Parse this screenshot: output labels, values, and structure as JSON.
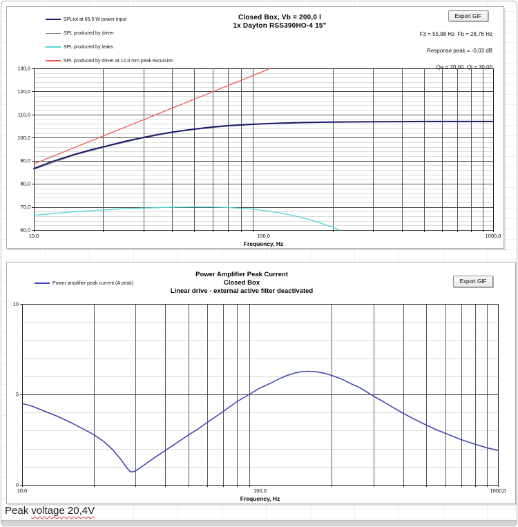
{
  "footer": {
    "text_before": "Peak ",
    "flagged": "voltage 20,4V"
  },
  "chart_data": [
    {
      "type": "line",
      "title": "Closed Box, Vb = 200,0 l — 1x Dayton RSS390HO-4 15\"",
      "title_lines": [
        "Closed Box, Vb = 200,0 l",
        "1x Dayton RSS390HO-4 15\""
      ],
      "export_button": "Export GIF",
      "stats": [
        "F3 = 55,98 Hz  Fb = 28,76 Hz",
        "Response peak = -0,03 dB",
        "Qa = 20,00  Ql = 30,00"
      ],
      "xlabel": "Frequency, Hz",
      "ylabel": "",
      "x_log": true,
      "xlim": [
        10,
        1000
      ],
      "ylim": [
        60,
        130
      ],
      "y_major": 10,
      "y_minor": 2,
      "grid": true,
      "legend_position": "top-left",
      "y_ticks": [
        {
          "v": 130,
          "label": "130,0"
        },
        {
          "v": 120,
          "label": "120,0"
        },
        {
          "v": 110,
          "label": "110,0"
        },
        {
          "v": 100,
          "label": "100,0"
        },
        {
          "v": 90,
          "label": "90,0"
        },
        {
          "v": 80,
          "label": "80,0"
        },
        {
          "v": 70,
          "label": "70,0"
        },
        {
          "v": 60,
          "label": "60,0"
        }
      ],
      "x_ticks": [
        {
          "v": 10,
          "label": "10,0"
        },
        {
          "v": 100,
          "label": "100,0"
        },
        {
          "v": 1000,
          "label": "1000,0"
        }
      ],
      "legend": [
        {
          "label": "SPLtot at 65,0 W power input",
          "color": "#1a1a6e",
          "width": 2
        },
        {
          "label": "SPL produced by driver",
          "color": "#8c8c8c",
          "width": 1
        },
        {
          "label": "SPL produced by leaks",
          "color": "#4fd4dc",
          "width": 1.3
        },
        {
          "label": "SPL produced by driver at 12,0 mm peak excursion",
          "color": "#ef5a5a",
          "width": 1.3
        }
      ],
      "series": [
        {
          "name": "SPL produced by driver",
          "color": "#8c8c8c",
          "width": 1,
          "x": [
            10,
            15,
            20,
            30,
            40,
            50,
            70,
            100,
            150,
            300,
            1000
          ],
          "y": [
            86.2,
            92.4,
            95.7,
            99.9,
            102.2,
            103.5,
            105.0,
            105.9,
            106.45,
            106.85,
            106.95
          ]
        },
        {
          "name": "SPL produced by leaks",
          "color": "#4fd4dc",
          "width": 1.3,
          "x": [
            10,
            13,
            16,
            20,
            25,
            30,
            40,
            50,
            60,
            70,
            80,
            90,
            100,
            120,
            140,
            160,
            180,
            200,
            215
          ],
          "y": [
            66.4,
            67.4,
            68.1,
            68.7,
            69.2,
            69.5,
            69.85,
            70.0,
            69.95,
            69.75,
            69.4,
            69.0,
            68.5,
            67.3,
            65.9,
            64.4,
            62.8,
            61.2,
            60.0
          ]
        },
        {
          "name": "SPL produced by driver at 12,0 mm peak excursion",
          "color": "#ef5a5a",
          "width": 1.3,
          "x": [
            10,
            107.5
          ],
          "y": [
            88.6,
            130
          ]
        },
        {
          "name": "SPLtot at 65,0 W power input",
          "color": "#1a1a6e",
          "width": 2,
          "x": [
            10,
            12,
            15,
            18,
            20,
            25,
            30,
            35,
            40,
            45,
            50,
            60,
            70,
            80,
            90,
            100,
            120,
            150,
            200,
            300,
            400,
            500,
            700,
            1000
          ],
          "y": [
            86.6,
            89.6,
            92.7,
            94.9,
            96.0,
            98.4,
            100.1,
            101.4,
            102.4,
            103.1,
            103.7,
            104.6,
            105.2,
            105.5,
            105.8,
            106.0,
            106.3,
            106.55,
            106.75,
            106.9,
            106.95,
            107.0,
            107.0,
            107.0
          ]
        }
      ]
    },
    {
      "type": "line",
      "title": "Power Amplifier Peak Current — Closed Box — Linear drive - external active filter deactivated",
      "title_lines": [
        "Power Amplifier Peak Current",
        "Closed Box",
        "Linear drive - external active filter deactivated"
      ],
      "export_button": "Export GIF",
      "xlabel": "Frequency, Hz",
      "ylabel": "",
      "x_log": true,
      "xlim": [
        10,
        1000
      ],
      "ylim": [
        0,
        10
      ],
      "y_major": 5,
      "y_minor": 1,
      "grid": true,
      "legend_position": "top-left",
      "y_ticks": [
        {
          "v": 10,
          "label": "10"
        },
        {
          "v": 5,
          "label": "5"
        },
        {
          "v": 0,
          "label": "0"
        }
      ],
      "x_ticks": [
        {
          "v": 10,
          "label": "10,0"
        },
        {
          "v": 100,
          "label": "100,0"
        },
        {
          "v": 1000,
          "label": "1000,0"
        }
      ],
      "legend": [
        {
          "label": "Power amplifier peak current (A peak)",
          "color": "#4545b5",
          "width": 1.5
        }
      ],
      "series": [
        {
          "name": "Power amplifier peak current (A peak)",
          "color": "#4545b5",
          "width": 1.6,
          "x": [
            10,
            11,
            12,
            14,
            16,
            18,
            20,
            22,
            24,
            26,
            27.5,
            28.5,
            29.5,
            31,
            33,
            36,
            40,
            45,
            50,
            55,
            60,
            70,
            80,
            90,
            100,
            110,
            120,
            130,
            140,
            150,
            160,
            170,
            185,
            200,
            220,
            240,
            260,
            280,
            300,
            330,
            360,
            400,
            450,
            500,
            550,
            600,
            700,
            800,
            900,
            1000
          ],
          "y": [
            4.5,
            4.35,
            4.15,
            3.8,
            3.45,
            3.1,
            2.78,
            2.4,
            1.95,
            1.4,
            0.95,
            0.72,
            0.73,
            0.9,
            1.15,
            1.5,
            1.9,
            2.35,
            2.75,
            3.1,
            3.45,
            4.05,
            4.6,
            5.0,
            5.35,
            5.6,
            5.85,
            6.05,
            6.18,
            6.26,
            6.28,
            6.26,
            6.18,
            6.05,
            5.85,
            5.6,
            5.4,
            5.15,
            4.9,
            4.6,
            4.3,
            3.95,
            3.6,
            3.3,
            3.05,
            2.85,
            2.5,
            2.25,
            2.05,
            1.9
          ]
        }
      ]
    }
  ]
}
